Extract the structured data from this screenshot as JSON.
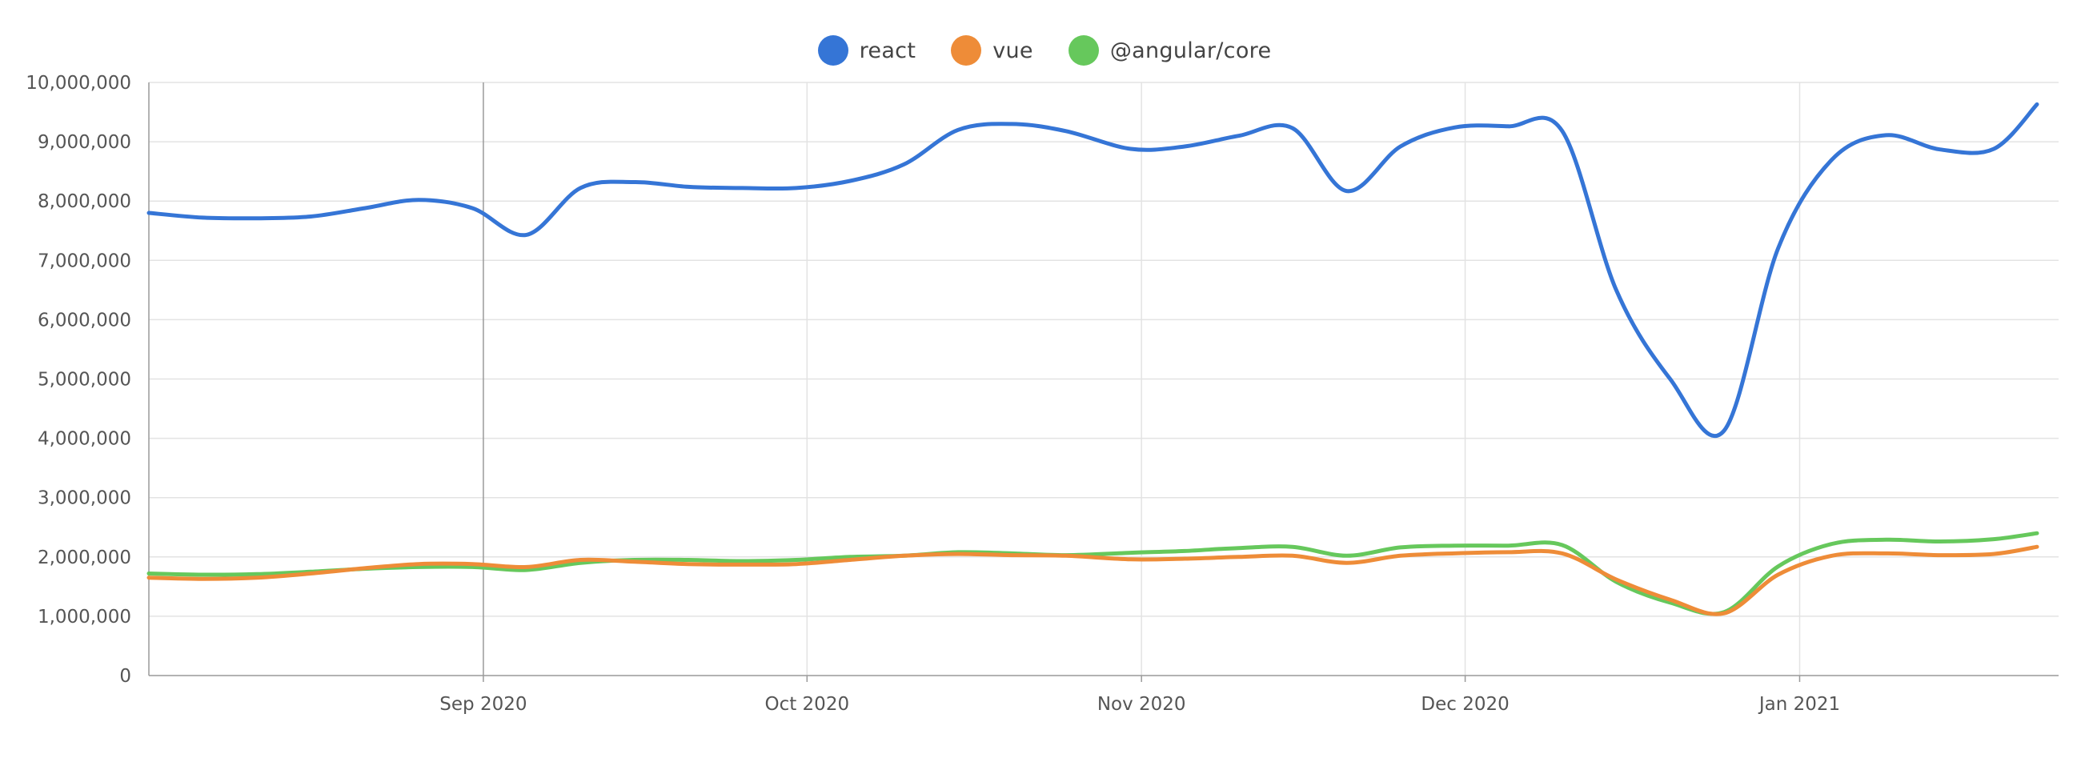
{
  "chart_data": {
    "type": "line",
    "x": [
      "2020-08-01",
      "2020-08-06",
      "2020-08-11",
      "2020-08-16",
      "2020-08-21",
      "2020-08-26",
      "2020-08-31",
      "2020-09-05",
      "2020-09-10",
      "2020-09-15",
      "2020-09-20",
      "2020-09-25",
      "2020-09-30",
      "2020-10-05",
      "2020-10-10",
      "2020-10-15",
      "2020-10-20",
      "2020-10-25",
      "2020-10-31",
      "2020-11-05",
      "2020-11-10",
      "2020-11-15",
      "2020-11-20",
      "2020-11-25",
      "2020-11-30",
      "2020-12-05",
      "2020-12-10",
      "2020-12-15",
      "2020-12-20",
      "2020-12-25",
      "2020-12-30",
      "2021-01-04",
      "2021-01-09",
      "2021-01-14",
      "2021-01-19",
      "2021-01-23"
    ],
    "series": [
      {
        "name": "react",
        "color": "#3575d6",
        "values": [
          7800000,
          7720000,
          7710000,
          7740000,
          7880000,
          8020000,
          7880000,
          7430000,
          8220000,
          8320000,
          8240000,
          8220000,
          8220000,
          8340000,
          8620000,
          9200000,
          9300000,
          9180000,
          8880000,
          8920000,
          9100000,
          9230000,
          8170000,
          8920000,
          9240000,
          9260000,
          9180000,
          6500000,
          5000000,
          4130000,
          7200000,
          8700000,
          9110000,
          8870000,
          8880000,
          9630000
        ]
      },
      {
        "name": "vue",
        "color": "#ee8c38",
        "values": [
          1650000,
          1630000,
          1650000,
          1720000,
          1810000,
          1880000,
          1880000,
          1830000,
          1950000,
          1920000,
          1880000,
          1870000,
          1880000,
          1950000,
          2020000,
          2050000,
          2030000,
          2020000,
          1960000,
          1970000,
          2000000,
          2020000,
          1900000,
          2020000,
          2060000,
          2080000,
          2060000,
          1620000,
          1280000,
          1050000,
          1700000,
          2020000,
          2060000,
          2030000,
          2050000,
          2170000
        ]
      },
      {
        "name": "@angular/core",
        "color": "#66c85c",
        "values": [
          1720000,
          1700000,
          1710000,
          1750000,
          1800000,
          1830000,
          1830000,
          1780000,
          1900000,
          1950000,
          1950000,
          1930000,
          1950000,
          2000000,
          2020000,
          2080000,
          2060000,
          2030000,
          2070000,
          2100000,
          2150000,
          2170000,
          2020000,
          2160000,
          2190000,
          2190000,
          2200000,
          1580000,
          1230000,
          1070000,
          1840000,
          2220000,
          2290000,
          2260000,
          2300000,
          2400000
        ]
      }
    ],
    "ylim": [
      0,
      10000000
    ],
    "yticks": [
      "0",
      "1,000,000",
      "2,000,000",
      "3,000,000",
      "4,000,000",
      "5,000,000",
      "6,000,000",
      "7,000,000",
      "8,000,000",
      "9,000,000",
      "10,000,000"
    ],
    "xticks": [
      {
        "label": "Sep 2020",
        "date": "2020-09-01"
      },
      {
        "label": "Oct 2020",
        "date": "2020-10-01"
      },
      {
        "label": "Nov 2020",
        "date": "2020-11-01"
      },
      {
        "label": "Dec 2020",
        "date": "2020-12-01"
      },
      {
        "label": "Jan 2021",
        "date": "2021-01-01"
      }
    ],
    "xlim": [
      "2020-08-01",
      "2021-01-25"
    ],
    "grid": true,
    "legend_position": "top-center",
    "title": "",
    "xlabel": "",
    "ylabel": ""
  }
}
